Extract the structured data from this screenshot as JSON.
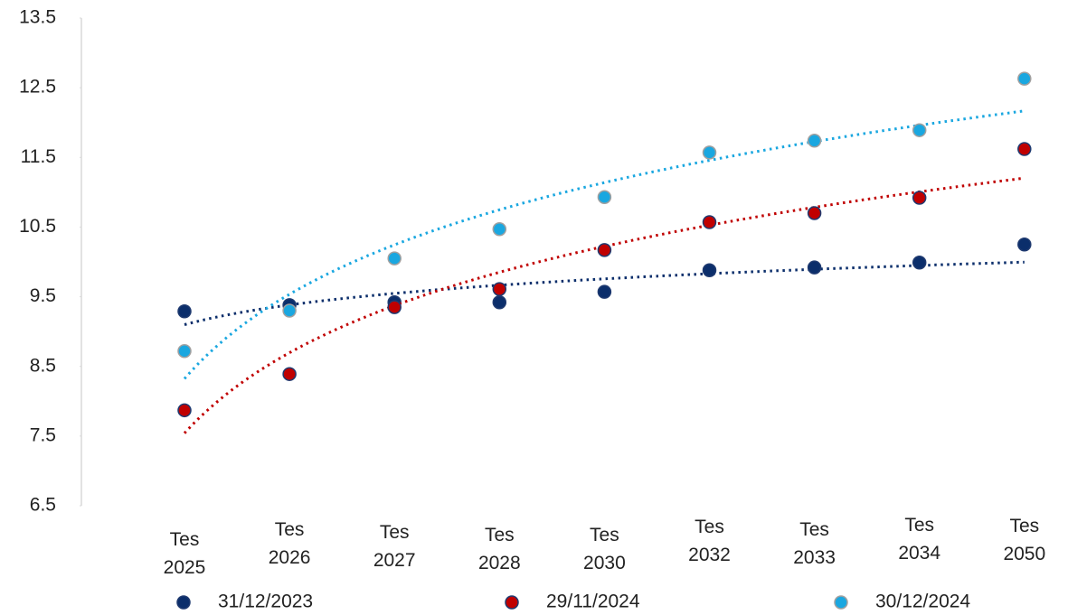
{
  "chart_data": {
    "type": "scatter",
    "categories": [
      "Tes 2025",
      "Tes 2026",
      "Tes 2027",
      "Tes 2028",
      "Tes 2030",
      "Tes 2032",
      "Tes 2033",
      "Tes 2034",
      "Tes 2050"
    ],
    "series": [
      {
        "name": "31/12/2023",
        "color": "#0b2e6b",
        "edgecolor": "#1f3a70",
        "values": [
          9.29,
          9.38,
          9.42,
          9.42,
          9.57,
          9.88,
          9.92,
          9.99,
          10.25
        ]
      },
      {
        "name": "29/11/2024",
        "color": "#c00000",
        "edgecolor": "#1f3a70",
        "values": [
          7.87,
          8.39,
          9.35,
          9.61,
          10.17,
          10.57,
          10.7,
          10.92,
          11.62
        ]
      },
      {
        "name": "30/12/2024",
        "color": "#1aa7e0",
        "edgecolor": "#a0a0a0",
        "values": [
          8.72,
          9.3,
          10.05,
          10.47,
          10.93,
          11.57,
          11.74,
          11.89,
          12.63
        ]
      }
    ],
    "trendline": "logarithmic",
    "ylim": [
      6.5,
      13.5
    ],
    "yticks": [
      6.5,
      7.5,
      8.5,
      9.5,
      10.5,
      11.5,
      12.5,
      13.5
    ],
    "grid": false,
    "legend": "bottom"
  }
}
